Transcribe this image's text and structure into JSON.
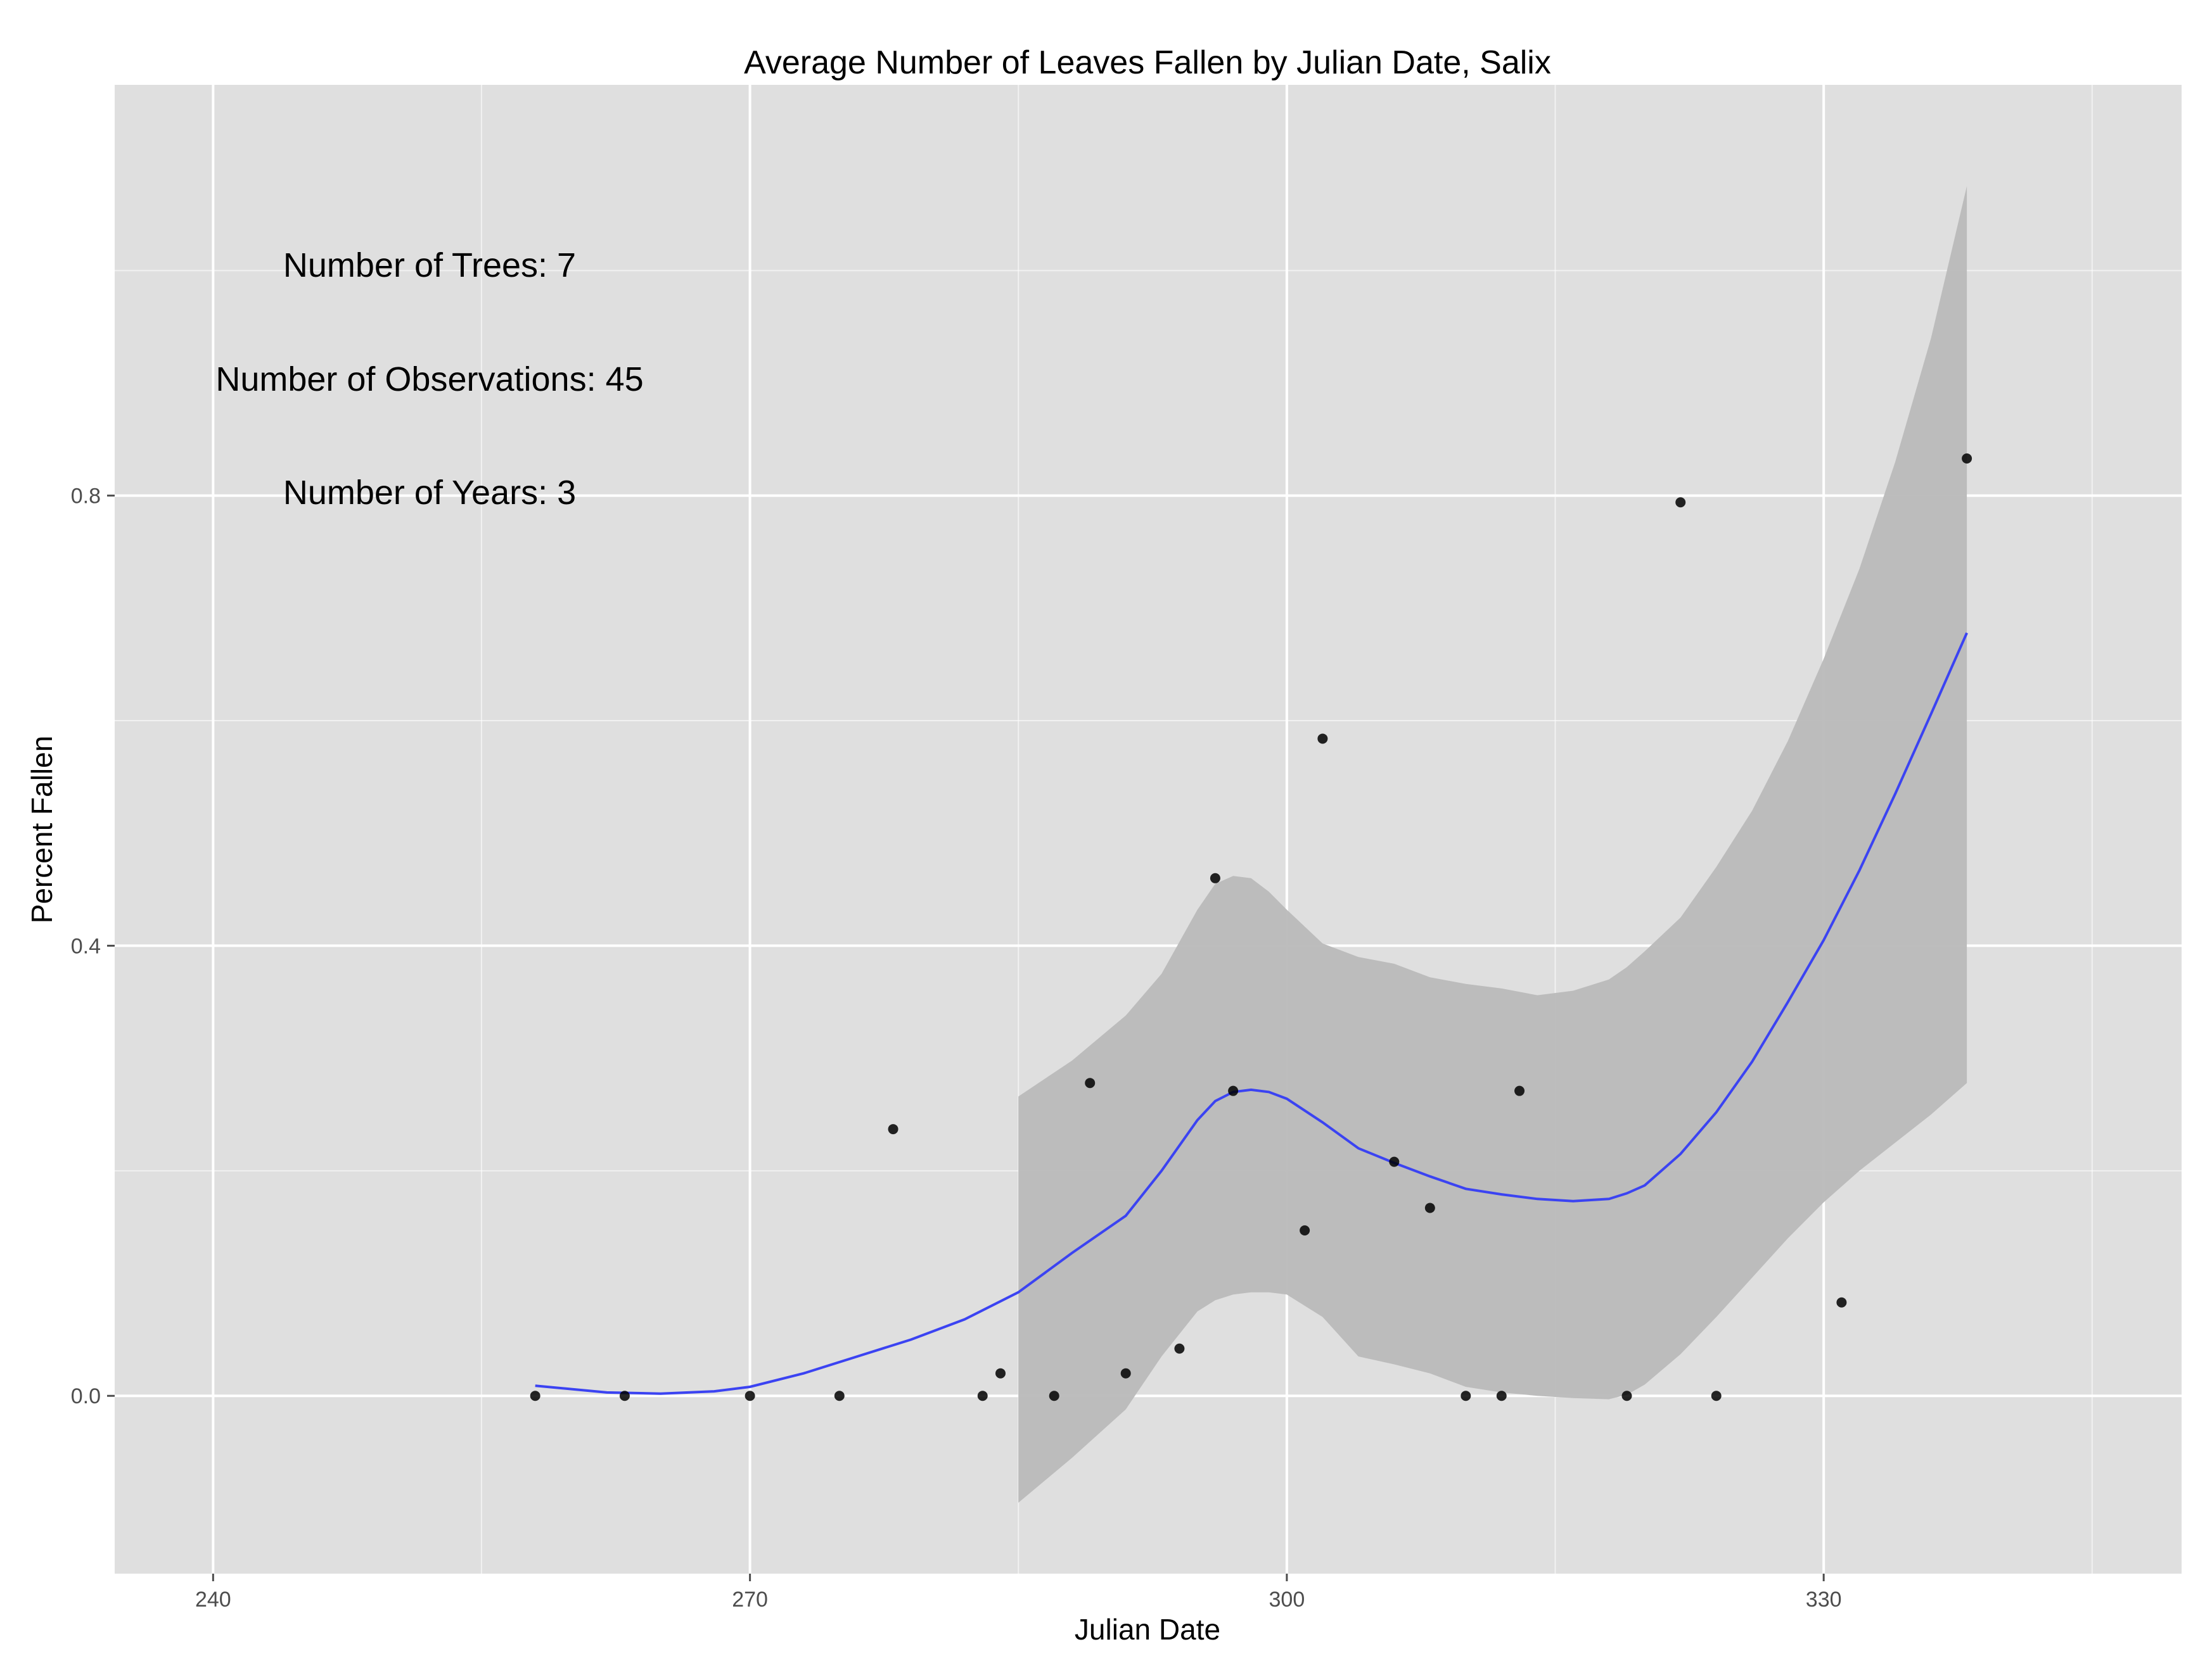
{
  "chart_data": {
    "type": "scatter",
    "title": "Average Number of Leaves Fallen by Julian Date, Salix",
    "xlabel": "Julian Date",
    "ylabel": "Percent Fallen",
    "xlim": [
      234.5,
      350
    ],
    "ylim": [
      -0.158,
      1.165
    ],
    "x_ticks": [
      240,
      270,
      300,
      330
    ],
    "x_tick_labels": [
      "240",
      "270",
      "300",
      "330"
    ],
    "y_ticks": [
      0.0,
      0.4,
      0.8
    ],
    "y_tick_labels": [
      "0.0",
      "0.4",
      "0.8"
    ],
    "grid": true,
    "legend": "none",
    "colors": {
      "panel": "#dfdfdf",
      "grid": "#ffffff",
      "points": "#000000",
      "smooth_line": "#3b43f2",
      "ribbon": "#b9b9b9"
    },
    "annotations": [
      "Number of Trees: 7",
      "Number of Observations: 45",
      "Number of Years: 3"
    ],
    "series": [
      {
        "kind": "points",
        "x": [
          258,
          263,
          270,
          275,
          278,
          283,
          284,
          287,
          289,
          291,
          294,
          296,
          297,
          301,
          302,
          306,
          308,
          310,
          312,
          313,
          319,
          322,
          324,
          331,
          338
        ],
        "y": [
          0.0,
          0.0,
          0.0,
          0.0,
          0.237,
          0.0,
          0.02,
          0.0,
          0.278,
          0.02,
          0.042,
          0.46,
          0.271,
          0.147,
          0.584,
          0.208,
          0.167,
          0.0,
          0.0,
          0.271,
          0.0,
          0.794,
          0.0,
          0.083,
          0.833
        ]
      },
      {
        "kind": "smooth",
        "x": [
          258,
          262,
          265,
          268,
          270,
          273,
          276,
          279,
          282,
          285,
          288,
          291,
          293,
          295,
          296,
          297,
          298,
          299,
          300,
          302,
          304,
          306,
          308,
          310,
          312,
          314,
          316,
          318,
          319,
          320,
          322,
          324,
          326,
          328,
          330,
          332,
          334,
          336,
          338
        ],
        "y": [
          0.009,
          0.003,
          0.002,
          0.004,
          0.008,
          0.02,
          0.035,
          0.05,
          0.068,
          0.092,
          0.127,
          0.16,
          0.2,
          0.245,
          0.262,
          0.27,
          0.272,
          0.27,
          0.264,
          0.243,
          0.22,
          0.207,
          0.195,
          0.184,
          0.179,
          0.175,
          0.173,
          0.175,
          0.18,
          0.187,
          0.215,
          0.252,
          0.297,
          0.35,
          0.405,
          0.467,
          0.535,
          0.606,
          0.678
        ]
      },
      {
        "kind": "confidence_band",
        "x": [
          285,
          288,
          291,
          293,
          295,
          296,
          297,
          298,
          299,
          300,
          302,
          304,
          306,
          308,
          310,
          312,
          314,
          316,
          318,
          319,
          320,
          322,
          324,
          326,
          328,
          330,
          332,
          334,
          336,
          338
        ],
        "upper": [
          0.266,
          0.298,
          0.338,
          0.375,
          0.432,
          0.455,
          0.462,
          0.46,
          0.448,
          0.432,
          0.402,
          0.39,
          0.384,
          0.372,
          0.366,
          0.362,
          0.356,
          0.36,
          0.37,
          0.381,
          0.395,
          0.425,
          0.47,
          0.52,
          0.582,
          0.655,
          0.735,
          0.83,
          0.94,
          1.075
        ],
        "lower": [
          -0.095,
          -0.055,
          -0.012,
          0.035,
          0.075,
          0.085,
          0.09,
          0.092,
          0.092,
          0.09,
          0.07,
          0.035,
          0.028,
          0.02,
          0.008,
          0.003,
          0.0,
          -0.002,
          -0.003,
          0.001,
          0.01,
          0.037,
          0.07,
          0.105,
          0.14,
          0.172,
          0.2,
          0.225,
          0.25,
          0.278
        ]
      }
    ]
  }
}
